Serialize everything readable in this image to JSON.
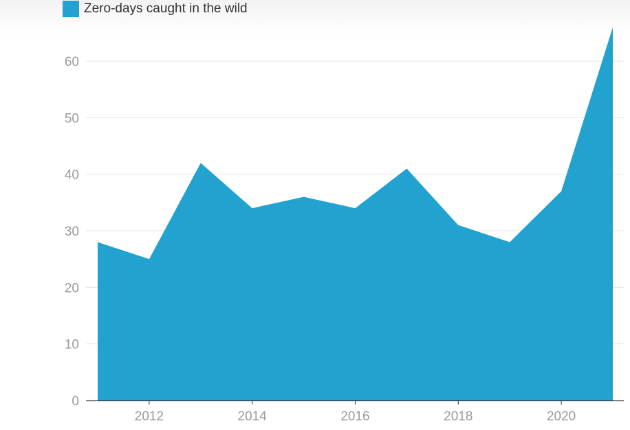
{
  "chart_data": {
    "type": "area",
    "title": "",
    "xlabel": "",
    "ylabel": "",
    "legend": {
      "position": "top-left"
    },
    "grid": true,
    "x": [
      2011,
      2012,
      2013,
      2014,
      2015,
      2016,
      2017,
      2018,
      2019,
      2020,
      2021
    ],
    "series": [
      {
        "name": "Zero-days caught in the wild",
        "color": "#21a2cf",
        "values": [
          28,
          25,
          42,
          34,
          36,
          34,
          41,
          31,
          28,
          37,
          66
        ]
      }
    ],
    "xlim": [
      2010.8,
      2021.2
    ],
    "ylim": [
      0,
      66
    ],
    "x_ticks": [
      "2012",
      "2014",
      "2016",
      "2018",
      "2020"
    ],
    "y_ticks": [
      "0",
      "10",
      "20",
      "30",
      "40",
      "50",
      "60"
    ]
  }
}
